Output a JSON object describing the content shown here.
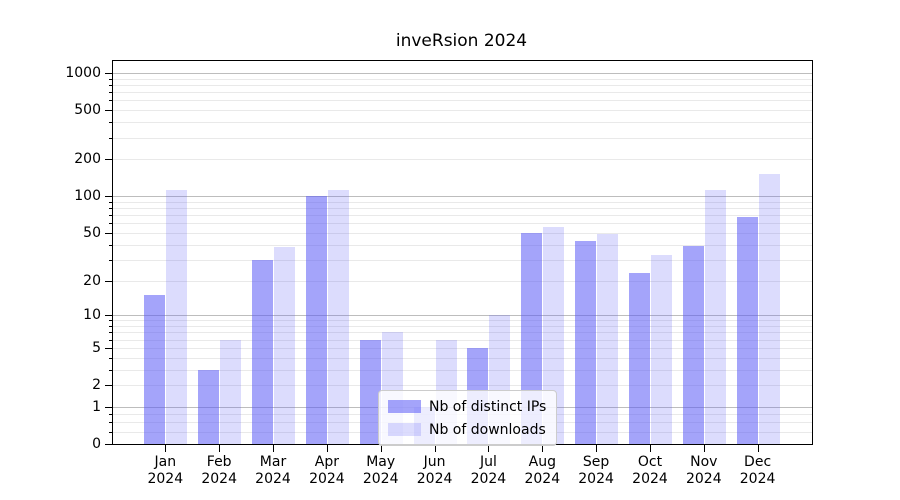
{
  "chart_data": {
    "type": "bar",
    "title": "inveRsion 2024",
    "categories": [
      "Jan",
      "Feb",
      "Mar",
      "Apr",
      "May",
      "Jun",
      "Jul",
      "Aug",
      "Sep",
      "Oct",
      "Nov",
      "Dec"
    ],
    "category_sublabel": "2024",
    "series": [
      {
        "name": "Nb of distinct IPs",
        "color": "rgba(90,90,245,0.55)",
        "values": [
          15,
          3,
          30,
          100,
          6,
          1,
          5,
          50,
          43,
          23,
          39,
          67
        ]
      },
      {
        "name": "Nb of downloads",
        "color": "rgba(90,90,245,0.21)",
        "values": [
          112,
          6,
          38,
          112,
          7,
          6,
          10,
          56,
          49,
          33,
          112,
          152
        ]
      }
    ],
    "yscale": "log1p",
    "ylim": [
      0,
      1250
    ],
    "y_tick_labels": [
      0,
      1,
      2,
      5,
      10,
      20,
      50,
      100,
      200,
      500,
      1000
    ],
    "y_major_gridlines": [
      1,
      10,
      100,
      1000
    ],
    "y_minor_gridlines": [
      0.25,
      0.5,
      0.75,
      2,
      3,
      4,
      5,
      6,
      7,
      8,
      9,
      20,
      30,
      40,
      50,
      60,
      70,
      80,
      90,
      200,
      300,
      400,
      500,
      600,
      700,
      800,
      900
    ],
    "grid": true,
    "legend_position": "lower-center-inside",
    "xlabel": "",
    "ylabel": ""
  },
  "colors": {
    "minor_grid": "#e9e9e9",
    "major_grid": "#bdbdbd",
    "spine": "#000000",
    "text": "#000000",
    "legend_border": "#cccccc",
    "legend_background": "rgba(255,255,255,0.8)"
  }
}
